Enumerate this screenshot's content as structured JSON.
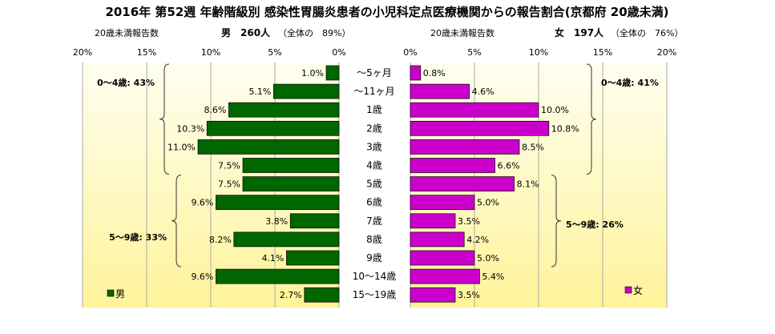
{
  "title": "2016年 第52週 年齢階級別 感染性胃腸炎患者の小児科定点医療機関からの報告割合(京都府 20歳未満)",
  "colors": {
    "male": "#006600",
    "female": "#CC00CC",
    "bar_edge": "#000000",
    "background_top": "#FFFFF0",
    "background_bottom": "#FFF39A"
  },
  "chart_data": [
    {
      "type": "bar",
      "orientation": "horizontal",
      "direction": "right-to-left",
      "header": {
        "label": "20歳未満報告数",
        "sex": "男",
        "count": "260人",
        "share": "（全体の　89%）"
      },
      "categories": [
        "〜5ヶ月",
        "〜11ヶ月",
        "1歳",
        "2歳",
        "3歳",
        "4歳",
        "5歳",
        "6歳",
        "7歳",
        "8歳",
        "9歳",
        "10〜14歳",
        "15〜19歳"
      ],
      "series": [
        {
          "name": "男",
          "values": [
            1.0,
            5.1,
            8.6,
            10.3,
            11.0,
            7.5,
            7.5,
            9.6,
            3.8,
            8.2,
            4.1,
            9.6,
            2.7
          ]
        }
      ],
      "data_labels": [
        "1.0%",
        "5.1%",
        "8.6%",
        "10.3%",
        "11.0%",
        "7.5%",
        "7.5%",
        "9.6%",
        "3.8%",
        "8.2%",
        "4.1%",
        "9.6%",
        "2.7%"
      ],
      "xlim": [
        0,
        20
      ],
      "tick_labels": [
        "20%",
        "15%",
        "10%",
        "5%",
        "0%"
      ],
      "groups": [
        {
          "label": "0〜4歳: 43%",
          "from": 0,
          "to": 5
        },
        {
          "label": "5〜9歳: 33%",
          "from": 6,
          "to": 10
        }
      ],
      "legend": {
        "label": "男",
        "placement": "bottom-left"
      },
      "grid": true
    },
    {
      "type": "bar",
      "orientation": "horizontal",
      "direction": "left-to-right",
      "header": {
        "label": "20歳未満報告数",
        "sex": "女",
        "count": "197人",
        "share": "（全体の　76%）"
      },
      "categories": [
        "〜5ヶ月",
        "〜11ヶ月",
        "1歳",
        "2歳",
        "3歳",
        "4歳",
        "5歳",
        "6歳",
        "7歳",
        "8歳",
        "9歳",
        "10〜14歳",
        "15〜19歳"
      ],
      "series": [
        {
          "name": "女",
          "values": [
            0.8,
            4.6,
            10.0,
            10.8,
            8.5,
            6.6,
            8.1,
            5.0,
            3.5,
            4.2,
            5.0,
            5.4,
            3.5
          ]
        }
      ],
      "data_labels": [
        "0.8%",
        "4.6%",
        "10.0%",
        "10.8%",
        "8.5%",
        "6.6%",
        "8.1%",
        "5.0%",
        "3.5%",
        "4.2%",
        "5.0%",
        "5.4%",
        "3.5%"
      ],
      "xlim": [
        0,
        20
      ],
      "tick_labels": [
        "0%",
        "5%",
        "10%",
        "15%",
        "20%"
      ],
      "groups": [
        {
          "label": "0〜4歳: 41%",
          "from": 0,
          "to": 5
        },
        {
          "label": "5〜9歳: 26%",
          "from": 6,
          "to": 10
        }
      ],
      "legend": {
        "label": "女",
        "placement": "bottom-right"
      },
      "grid": true
    }
  ]
}
